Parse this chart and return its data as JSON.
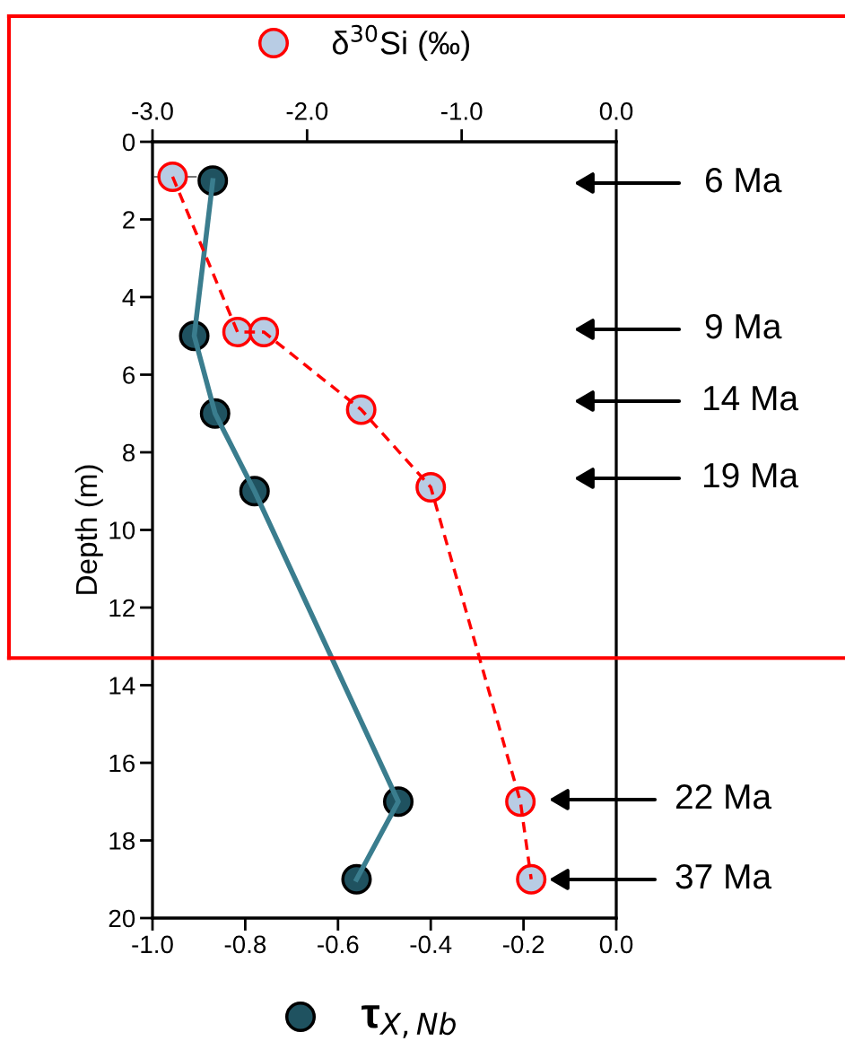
{
  "chart_data": {
    "type": "line",
    "xlabel": "τ$_{X,Nb}$",
    "x2label": "δ$^{30}$Si (‰)",
    "ylabel": "Depth (m)",
    "xlim": [
      -1.0,
      0.0
    ],
    "xticks": [
      {
        "value": -1.0,
        "label": "-1.0"
      },
      {
        "value": -0.8,
        "label": "-0.8"
      },
      {
        "value": -0.6,
        "label": "-0.6"
      },
      {
        "value": -0.4,
        "label": "-0.4"
      },
      {
        "value": -0.2,
        "label": "-0.2"
      },
      {
        "value": 0.0,
        "label": "0.0"
      }
    ],
    "x2lim": [
      -3.0,
      0.0
    ],
    "x2ticks": [
      {
        "value": -3.0,
        "label": "-3.0"
      },
      {
        "value": -2.0,
        "label": "-2.0"
      },
      {
        "value": -1.0,
        "label": "-1.0"
      },
      {
        "value": 0.0,
        "label": "0.0"
      }
    ],
    "ylim": [
      20,
      0
    ],
    "yticks": [
      0,
      2,
      4,
      6,
      8,
      10,
      12,
      14,
      16,
      18,
      20
    ],
    "grid": false,
    "marker": "circle",
    "ref_lines": [
      {
        "axis": "y",
        "value": 13.3,
        "color": "#ff0000"
      }
    ],
    "series": [
      {
        "color": "#3a7d8e",
        "line_style": "solid",
        "x": [
          -0.87,
          -0.91,
          -0.865,
          -0.78,
          -0.47,
          -0.56
        ],
        "values": [
          1.0,
          5.0,
          7.0,
          9.0,
          17.0,
          19.0
        ]
      },
      {
        "color": "#ff0000",
        "line_style": "dashed",
        "axis": "x2",
        "x": [
          -2.87,
          -2.45,
          -2.28,
          -1.65,
          -1.2,
          -0.62,
          -0.55
        ],
        "values": [
          0.9,
          4.9,
          4.9,
          6.9,
          8.9,
          17.0,
          19.0
        ],
        "xerrors": [
          0.15,
          null,
          null,
          null,
          null,
          null,
          null
        ]
      }
    ],
    "annotations": [
      "6 Ma",
      "9 Ma",
      "14 Ma",
      "19 Ma",
      "22 Ma",
      "37 Ma"
    ]
  }
}
